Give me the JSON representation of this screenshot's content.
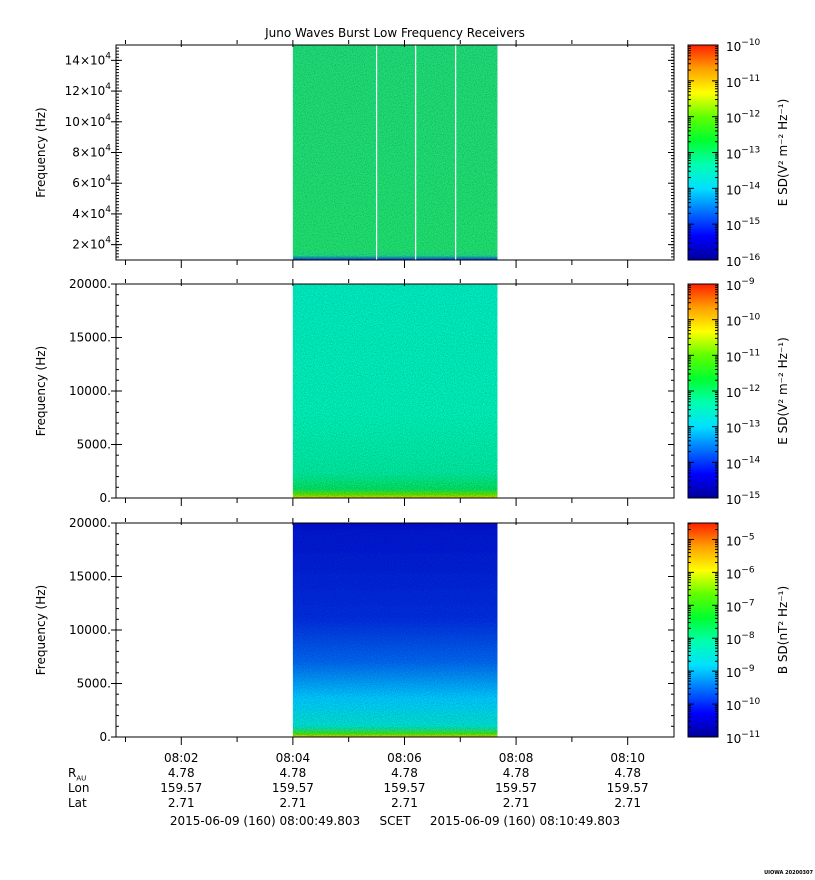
{
  "title": "Juno Waves Burst Low Frequency Receivers",
  "credit": "UIOWA 20200307",
  "colors": {
    "spectrogram_low": "#0018d8",
    "spectrogram_mid": "#00e0c0",
    "spectrogram_high": "#10e060",
    "colormap": [
      "#00009a",
      "#0000ff",
      "#0070ff",
      "#00e0ff",
      "#00ffb0",
      "#00ff30",
      "#60ff00",
      "#ffff00",
      "#ffa000",
      "#ff2000"
    ]
  },
  "chart_data": [
    {
      "type": "heatmap",
      "panel": "top",
      "ylabel": "Frequency (Hz)",
      "y_tick_labels": [
        "2×10^4",
        "4×10^4",
        "6×10^4",
        "8×10^4",
        "10×10^4",
        "12×10^4",
        "14×10^4"
      ],
      "y_ticks": [
        20000,
        40000,
        60000,
        80000,
        100000,
        120000,
        140000
      ],
      "ylim": [
        10000,
        150000
      ],
      "data_time_range": [
        "08:04:00",
        "08:07:40"
      ],
      "data_gaps": [
        "08:05:30",
        "08:06:12",
        "08:06:55"
      ],
      "colorbar": {
        "label": "E SD(V² m⁻² Hz⁻¹)",
        "range_exponents": [
          -16,
          -10
        ],
        "tick_exponents": [
          -16,
          -15,
          -14,
          -13,
          -12,
          -11,
          -10
        ]
      }
    },
    {
      "type": "heatmap",
      "panel": "middle",
      "ylabel": "Frequency (Hz)",
      "y_tick_labels": [
        "0.",
        "5000.",
        "10000.",
        "15000.",
        "20000."
      ],
      "y_ticks": [
        0,
        5000,
        10000,
        15000,
        20000
      ],
      "ylim": [
        0,
        20000
      ],
      "data_time_range": [
        "08:04:00",
        "08:07:40"
      ],
      "colorbar": {
        "label": "E SD(V² m⁻² Hz⁻¹)",
        "range_exponents": [
          -15,
          -9
        ],
        "tick_exponents": [
          -15,
          -14,
          -13,
          -12,
          -11,
          -10,
          -9
        ]
      }
    },
    {
      "type": "heatmap",
      "panel": "bottom",
      "ylabel": "Frequency (Hz)",
      "y_tick_labels": [
        "0.",
        "5000.",
        "10000.",
        "15000.",
        "20000."
      ],
      "y_ticks": [
        0,
        5000,
        10000,
        15000,
        20000
      ],
      "ylim": [
        0,
        20000
      ],
      "data_time_range": [
        "08:04:00",
        "08:07:40"
      ],
      "colorbar": {
        "label": "B SD(nT² Hz⁻¹)",
        "range_exponents": [
          -11,
          -4.5
        ],
        "tick_exponents": [
          -11,
          -10,
          -9,
          -8,
          -7,
          -6,
          -5
        ]
      }
    }
  ],
  "time_axis": {
    "range": [
      "08:00:49.803",
      "08:10:49.803"
    ],
    "tick_labels": [
      "08:02",
      "08:04",
      "08:06",
      "08:08",
      "08:10"
    ]
  },
  "ephemeris": {
    "rows": [
      {
        "label": "R",
        "label_sub": "AU",
        "values": [
          "4.78",
          "4.78",
          "4.78",
          "4.78",
          "4.78"
        ]
      },
      {
        "label": "Lon",
        "label_sub": "",
        "values": [
          "159.57",
          "159.57",
          "159.57",
          "159.57",
          "159.57"
        ]
      },
      {
        "label": "Lat",
        "label_sub": "",
        "values": [
          "2.71",
          "2.71",
          "2.71",
          "2.71",
          "2.71"
        ]
      }
    ]
  },
  "footer": {
    "start": "2015-06-09 (160) 08:00:49.803",
    "frame": "SCET",
    "end": "2015-06-09 (160) 08:10:49.803"
  }
}
